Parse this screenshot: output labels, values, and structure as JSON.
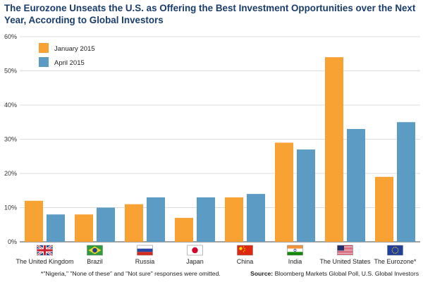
{
  "chart_data": {
    "type": "bar",
    "title": "The Eurozone Unseats the U.S. as Offering the Best Investment Opportunities over the Next Year, According to Global Investors",
    "categories": [
      "The United Kingdom",
      "Brazil",
      "Russia",
      "Japan",
      "China",
      "India",
      "The United States",
      "The Eurozone*"
    ],
    "series": [
      {
        "name": "January 2015",
        "values": [
          12,
          8,
          11,
          7,
          13,
          29,
          54,
          19
        ],
        "color": "#f7a233"
      },
      {
        "name": "April 2015",
        "values": [
          8,
          10,
          13,
          13,
          14,
          27,
          33,
          35
        ],
        "color": "#5b9bc4"
      }
    ],
    "ylim": [
      0,
      60
    ],
    "yticks": [
      "0%",
      "10%",
      "20%",
      "30%",
      "40%",
      "50%",
      "60%"
    ],
    "grid": true,
    "legend": "top-left",
    "flag_icons": [
      "uk-flag-icon",
      "brazil-flag-icon",
      "russia-flag-icon",
      "japan-flag-icon",
      "china-flag-icon",
      "india-flag-icon",
      "usa-flag-icon",
      "eu-flag-icon"
    ]
  },
  "footnote": "*\"Nigeria,\" \"None of these\" and \"Not sure\" responses were omitted.",
  "source_label": "Source:",
  "source_text": "Bloomberg Markets Global Poll, U.S. Global Investors"
}
